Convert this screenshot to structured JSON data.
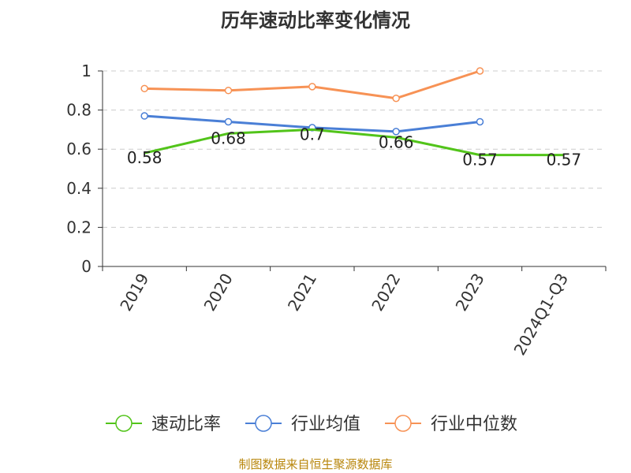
{
  "chart_data": {
    "type": "line",
    "title": "历年速动比率变化情况",
    "categories": [
      "2019",
      "2020",
      "2021",
      "2022",
      "2023",
      "2024Q1-Q3"
    ],
    "y_ticks": [
      "0",
      "0.2",
      "0.4",
      "0.6",
      "0.8",
      "1"
    ],
    "ylim": [
      0,
      1
    ],
    "grid": "horizontal dashed",
    "legend_position": "bottom",
    "series": [
      {
        "name": "速动比率",
        "color": "#52c41a",
        "values": [
          0.58,
          0.68,
          0.7,
          0.66,
          0.57,
          0.57
        ],
        "labels": [
          "0.58",
          "0.68",
          "0.7",
          "0.66",
          "0.57",
          "0.57"
        ]
      },
      {
        "name": "行业均值",
        "color": "#4a7fd6",
        "values": [
          0.77,
          0.74,
          0.71,
          0.69,
          0.74,
          null
        ]
      },
      {
        "name": "行业中位数",
        "color": "#f79255",
        "values": [
          0.91,
          0.9,
          0.92,
          0.86,
          1.0,
          null
        ]
      }
    ]
  },
  "footer": {
    "source": "制图数据来自恒生聚源数据库"
  }
}
